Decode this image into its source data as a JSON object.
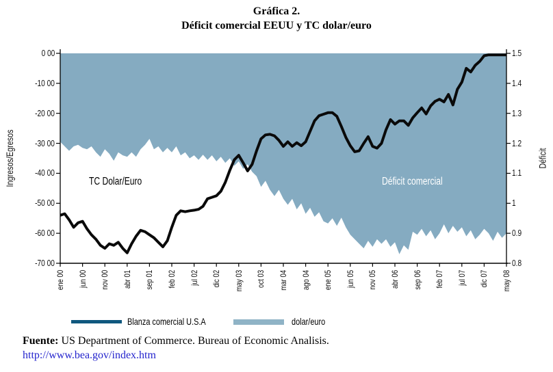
{
  "title": {
    "line1": "Gráfica 2.",
    "line2": "Déficit comercial EEUU y TC dolar/euro"
  },
  "chart_data": {
    "type": "area+line",
    "title": "Déficit comercial EEUU y TC dolar/euro",
    "x_tick_labels": [
      "ene 00",
      "jun 00",
      "nov 00",
      "abr 01",
      "sep 01",
      "feb 02",
      "jul 02",
      "dic 02",
      "may 03",
      "oct 03",
      "mar 04",
      "ago 04",
      "ene 05",
      "jun 05",
      "nov 05",
      "abr 06",
      "sep 06",
      "feb 07",
      "jul 07",
      "dic 07",
      "may 08"
    ],
    "left_axis": {
      "title": "Ingresos/Egresos",
      "tick_labels": [
        "0 00",
        "-10 00",
        "-20 00",
        "-30 00",
        "-40 00",
        "-50 00",
        "-60 00",
        "-70 00"
      ],
      "range": [
        0,
        -70
      ]
    },
    "right_axis": {
      "title": "Déficit",
      "tick_labels": [
        "1.5",
        "1.4",
        "1.3",
        "1.2",
        "1.1",
        "1",
        "0.9",
        "0.8"
      ],
      "range": [
        1.5,
        0.8
      ]
    },
    "grid": false,
    "series": [
      {
        "name": "Déficit comercial (área, eje izquierdo)",
        "style": "area",
        "axis": "left",
        "values": [
          -29.5,
          -31,
          -32.5,
          -31,
          -30.5,
          -31.5,
          -32,
          -31,
          -33,
          -34.5,
          -32,
          -33.5,
          -35.8,
          -33,
          -34,
          -34.5,
          -33,
          -34.5,
          -32,
          -30.5,
          -28.5,
          -32,
          -31,
          -33,
          -31.5,
          -33,
          -31,
          -34,
          -33,
          -35,
          -34,
          -35.5,
          -33.8,
          -35.5,
          -34,
          -36,
          -34.5,
          -36.5,
          -35,
          -37.5,
          -36,
          -38.5,
          -37,
          -39.5,
          -41,
          -44.5,
          -42.5,
          -45.5,
          -47.6,
          -45.5,
          -48.5,
          -50.5,
          -48.5,
          -52,
          -50,
          -53.5,
          -51.5,
          -54.5,
          -53,
          -56,
          -56.7,
          -55,
          -57.5,
          -54.8,
          -58,
          -60.5,
          -62,
          -63.5,
          -65,
          -62.5,
          -64.5,
          -62,
          -63.5,
          -62,
          -64.5,
          -63,
          -67,
          -64,
          -65.5,
          -59.5,
          -60.5,
          -58.5,
          -61,
          -59,
          -62,
          -60,
          -57,
          -60,
          -57.5,
          -59.5,
          -58,
          -61,
          -59,
          -62,
          -60.5,
          -58.5,
          -60,
          -62.5,
          -59.5,
          -61.5,
          -60
        ]
      },
      {
        "name": "TC dolar/euro (línea, eje derecho)",
        "style": "line",
        "axis": "right",
        "values": [
          0.96,
          0.965,
          0.945,
          0.92,
          0.935,
          0.94,
          0.915,
          0.895,
          0.88,
          0.86,
          0.85,
          0.865,
          0.86,
          0.87,
          0.85,
          0.835,
          0.865,
          0.89,
          0.91,
          0.905,
          0.895,
          0.885,
          0.87,
          0.855,
          0.875,
          0.92,
          0.96,
          0.975,
          0.972,
          0.975,
          0.977,
          0.98,
          0.99,
          1.015,
          1.02,
          1.025,
          1.04,
          1.07,
          1.11,
          1.145,
          1.16,
          1.135,
          1.108,
          1.13,
          1.175,
          1.215,
          1.228,
          1.23,
          1.225,
          1.21,
          1.19,
          1.205,
          1.19,
          1.202,
          1.192,
          1.205,
          1.24,
          1.275,
          1.292,
          1.297,
          1.302,
          1.302,
          1.29,
          1.256,
          1.22,
          1.192,
          1.172,
          1.175,
          1.2,
          1.222,
          1.19,
          1.184,
          1.2,
          1.245,
          1.279,
          1.264,
          1.275,
          1.275,
          1.26,
          1.285,
          1.302,
          1.318,
          1.298,
          1.325,
          1.34,
          1.347,
          1.338,
          1.363,
          1.328,
          1.38,
          1.404,
          1.45,
          1.438,
          1.46,
          1.473,
          1.492,
          1.495,
          1.495,
          1.495,
          1.495,
          1.495
        ]
      }
    ],
    "annotations": [
      {
        "text": "TC Dolar/Euro",
        "color": "#000000"
      },
      {
        "text": "Déficit comercial",
        "color": "#ffffff"
      }
    ],
    "colors": {
      "area_fill": "#85abc1",
      "line_stroke": "#0a0a0a",
      "axis": "#000000",
      "legend_line": "#0f587e",
      "legend_area": "#8fb3c6"
    }
  },
  "legend": [
    {
      "label": "Blanza comercial U.S.A",
      "swatch": "line"
    },
    {
      "label": "dolar/euro",
      "swatch": "area"
    }
  ],
  "footer": {
    "source_bold": "Fuente:",
    "source_text": " US Department of Commerce. Bureau of Economic Analisis.",
    "link": "http://www.bea.gov/index.htm"
  }
}
